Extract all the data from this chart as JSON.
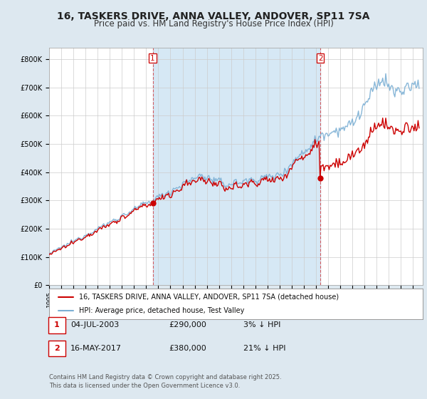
{
  "title": "16, TASKERS DRIVE, ANNA VALLEY, ANDOVER, SP11 7SA",
  "subtitle": "Price paid vs. HM Land Registry's House Price Index (HPI)",
  "yticks": [
    0,
    100000,
    200000,
    300000,
    400000,
    500000,
    600000,
    700000,
    800000
  ],
  "ytick_labels": [
    "£0",
    "£100K",
    "£200K",
    "£300K",
    "£400K",
    "£500K",
    "£600K",
    "£700K",
    "£800K"
  ],
  "ylim": [
    0,
    840000
  ],
  "xlim_start": 1995.0,
  "xlim_end": 2025.8,
  "sale1_x": 2003.54,
  "sale1_y": 290000,
  "sale1_label": "04-JUL-2003",
  "sale1_note": "3% ↓ HPI",
  "sale2_x": 2017.37,
  "sale2_y": 380000,
  "sale2_label": "16-MAY-2017",
  "sale2_note": "21% ↓ HPI",
  "legend_property": "16, TASKERS DRIVE, ANNA VALLEY, ANDOVER, SP11 7SA (detached house)",
  "legend_hpi": "HPI: Average price, detached house, Test Valley",
  "footer": "Contains HM Land Registry data © Crown copyright and database right 2025.\nThis data is licensed under the Open Government Licence v3.0.",
  "property_color": "#cc0000",
  "hpi_color": "#7bafd4",
  "bg_color": "#dde8f0",
  "plot_bg": "#ffffff",
  "shade_color": "#d6e8f5",
  "grid_color": "#cccccc",
  "title_fontsize": 10,
  "subtitle_fontsize": 8.5,
  "tick_fontsize": 7
}
